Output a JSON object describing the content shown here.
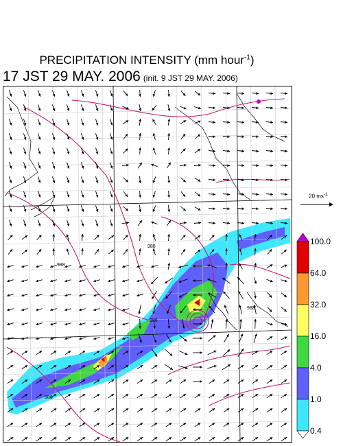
{
  "header": {
    "title_main": "PRECIPITATION INTENSITY (mm hour",
    "title_exp": "-1",
    "title_close": ")",
    "time": "17 JST 29 MAY. 2006",
    "init": "(init. 9 JST 29 MAY. 2006)"
  },
  "reference_vector": {
    "label": "20 ms",
    "exp": "-1"
  },
  "colorbar": {
    "levels": [
      "100.0",
      "64.0",
      "32.0",
      "16.0",
      "4.0",
      "1.0",
      "0.4"
    ],
    "colors": [
      "#c000d8",
      "#e00000",
      "#ff9a30",
      "#ffff60",
      "#40d840",
      "#6060ff",
      "#40e8ff",
      "#ffffff"
    ]
  },
  "map": {
    "contour_labels": [
      "988",
      "988",
      "988",
      "986",
      "986"
    ]
  }
}
